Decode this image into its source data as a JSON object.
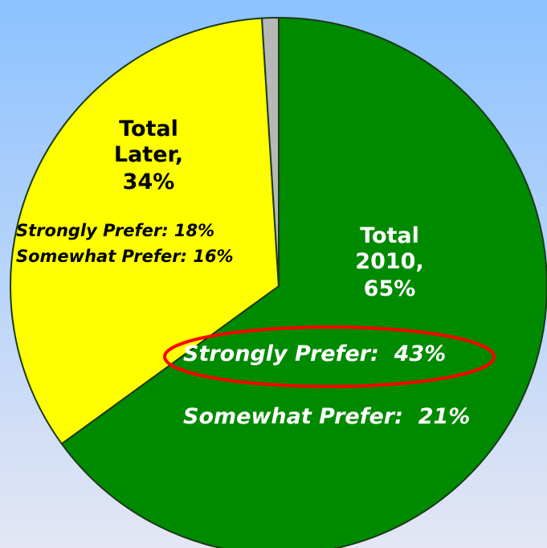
{
  "chart_data": {
    "type": "pie",
    "categories": [
      "Total 2010,",
      "Total Later,",
      null
    ],
    "values": [
      65,
      34,
      1
    ],
    "value_labels": [
      "65%",
      "34%",
      null
    ],
    "colors": [
      "#008a00",
      "#ffff00",
      "#b8b8b8"
    ],
    "label_colors": [
      "#ffffff",
      "#000000",
      null
    ],
    "annotations": [
      {
        "text": "Strongly Prefer:  43%",
        "color": "#ffffff",
        "highlight": "#ff0000"
      },
      {
        "text": "Somewhat Prefer:  21%",
        "color": "#ffffff"
      },
      {
        "text": "Strongly Prefer: 18%",
        "color": "#000000"
      },
      {
        "text": "Somewhat Prefer: 16%",
        "color": "#000000"
      }
    ]
  }
}
